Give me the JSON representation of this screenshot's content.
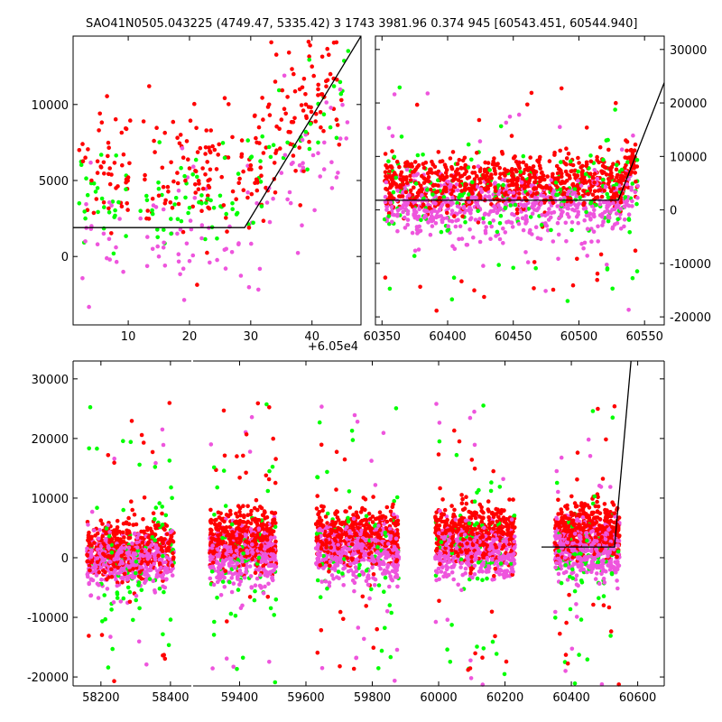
{
  "figure": {
    "title": "SAO41N0505.043225 (4749.47, 5335.42)   3 1743 3981.96 0.374 945 [60543.451, 60544.940]"
  },
  "colors": {
    "red_series": "#ff0000",
    "green_series": "#00ff00",
    "magenta_series": "#ee55dd",
    "model_line": "#000000",
    "background": "#ffffff"
  },
  "chart_data": [
    {
      "id": "top-left-zoom",
      "type": "scatter",
      "title": "",
      "xlabel": "",
      "ylabel": "",
      "x_offset_label": "+6.05e4",
      "xlim": [
        1,
        48
      ],
      "ylim": [
        -4500,
        14500
      ],
      "xticks": [
        10,
        20,
        30,
        40
      ],
      "yticks": [
        0,
        5000,
        10000
      ],
      "ytick_side": "left",
      "grid": false,
      "series": [
        {
          "color": "red",
          "x": [
            2,
            3,
            4,
            5,
            6,
            7,
            8,
            9,
            10,
            13,
            14,
            15,
            16,
            17,
            18,
            19,
            20,
            21,
            22,
            23,
            30,
            31,
            32,
            33,
            34,
            35,
            36,
            37,
            38,
            39,
            40,
            41,
            42,
            43,
            44
          ],
          "y": [
            7000,
            6500,
            5000,
            5500,
            6200,
            5800,
            4500,
            6000,
            5200,
            2500,
            3800,
            4000,
            3500,
            6200,
            5500,
            6500,
            5800,
            4200,
            3000,
            4000,
            6000,
            7500,
            9000,
            10000,
            11500,
            9000,
            10500,
            12000,
            11000,
            10000,
            12500,
            11000,
            10500,
            12000,
            9000
          ]
        },
        {
          "color": "green",
          "x": [
            2,
            3,
            5,
            12,
            14,
            17,
            20,
            22,
            23,
            24,
            25,
            26,
            27,
            30,
            33,
            36,
            39,
            41,
            43,
            44
          ],
          "y": [
            3500,
            2500,
            4500,
            3000,
            2800,
            1500,
            3200,
            3500,
            3800,
            3200,
            4000,
            2800,
            3500,
            6500,
            7200,
            7500,
            8200,
            7500,
            8500,
            7800
          ]
        },
        {
          "color": "magenta",
          "x": [
            3,
            4,
            5,
            6,
            7,
            8,
            12,
            14,
            15,
            16,
            18,
            19,
            20,
            22,
            26,
            28,
            31,
            33,
            35,
            38,
            41,
            42,
            44
          ],
          "y": [
            1000,
            2000,
            800,
            1500,
            -200,
            600,
            2500,
            500,
            0,
            -600,
            1500,
            -800,
            -300,
            1200,
            500,
            800,
            3500,
            4500,
            5500,
            6000,
            6800,
            7500,
            5200
          ]
        },
        {
          "color": "model",
          "x": [
            1,
            29,
            48
          ],
          "y": [
            1900,
            1900,
            14500
          ],
          "line": true
        }
      ]
    },
    {
      "id": "top-right-full",
      "type": "scatter",
      "title": "",
      "xlabel": "",
      "ylabel": "",
      "xlim": [
        60345,
        60565
      ],
      "ylim": [
        -21500,
        32500
      ],
      "xticks": [
        60350,
        60400,
        60450,
        60500,
        60550
      ],
      "yticks": [
        -20000,
        -10000,
        0,
        10000,
        20000,
        30000
      ],
      "ytick_side": "right",
      "grid": false,
      "series": [
        {
          "color": "red",
          "x": [
            60360,
            60380,
            60400,
            60420,
            60440,
            60460,
            60480,
            60500,
            60520,
            60540
          ],
          "y": [
            5000,
            5500,
            6000,
            5800,
            5200,
            6200,
            5500,
            6000,
            5800,
            9000
          ]
        },
        {
          "color": "green",
          "x": [
            60370,
            60410,
            60470,
            60520,
            60540
          ],
          "y": [
            3000,
            4000,
            2000,
            3500,
            6000
          ]
        },
        {
          "color": "magenta",
          "x": [
            60360,
            60390,
            60420,
            60450,
            60480,
            60510,
            60540
          ],
          "y": [
            500,
            1000,
            1500,
            1200,
            800,
            1500,
            4000
          ]
        },
        {
          "color": "model",
          "x": [
            60345,
            60530,
            60565
          ],
          "y": [
            1800,
            1800,
            23800
          ],
          "line": true
        }
      ]
    },
    {
      "id": "bottom-broken-axis",
      "type": "scatter",
      "title": "",
      "xlabel": "",
      "ylabel": "",
      "segments": [
        {
          "xlim": [
            58120,
            58460
          ],
          "xticks": [
            58200,
            58400
          ]
        },
        {
          "xlim": [
            59260,
            60680
          ],
          "xticks": [
            59400,
            59600,
            59800,
            60000,
            60200,
            60400,
            60600
          ]
        }
      ],
      "ylim": [
        -21500,
        33000
      ],
      "yticks": [
        -20000,
        -10000,
        0,
        10000,
        20000,
        30000
      ],
      "ytick_side": "left",
      "grid": false,
      "clusters": [
        {
          "x_range": [
            58160,
            58410
          ],
          "red_center": 1500,
          "magenta_center": -500
        },
        {
          "x_range": [
            59310,
            59510
          ],
          "red_center": 3000,
          "magenta_center": 500
        },
        {
          "x_range": [
            59630,
            59880
          ],
          "red_center": 3500,
          "magenta_center": 800
        },
        {
          "x_range": [
            59990,
            60230
          ],
          "red_center": 4000,
          "magenta_center": 1000
        },
        {
          "x_range": [
            60350,
            60545
          ],
          "red_center": 4500,
          "magenta_center": 1200
        }
      ],
      "series": [
        {
          "color": "model",
          "x": [
            60310,
            60530,
            60580
          ],
          "y": [
            1800,
            1800,
            33000
          ],
          "line": true
        }
      ]
    }
  ]
}
